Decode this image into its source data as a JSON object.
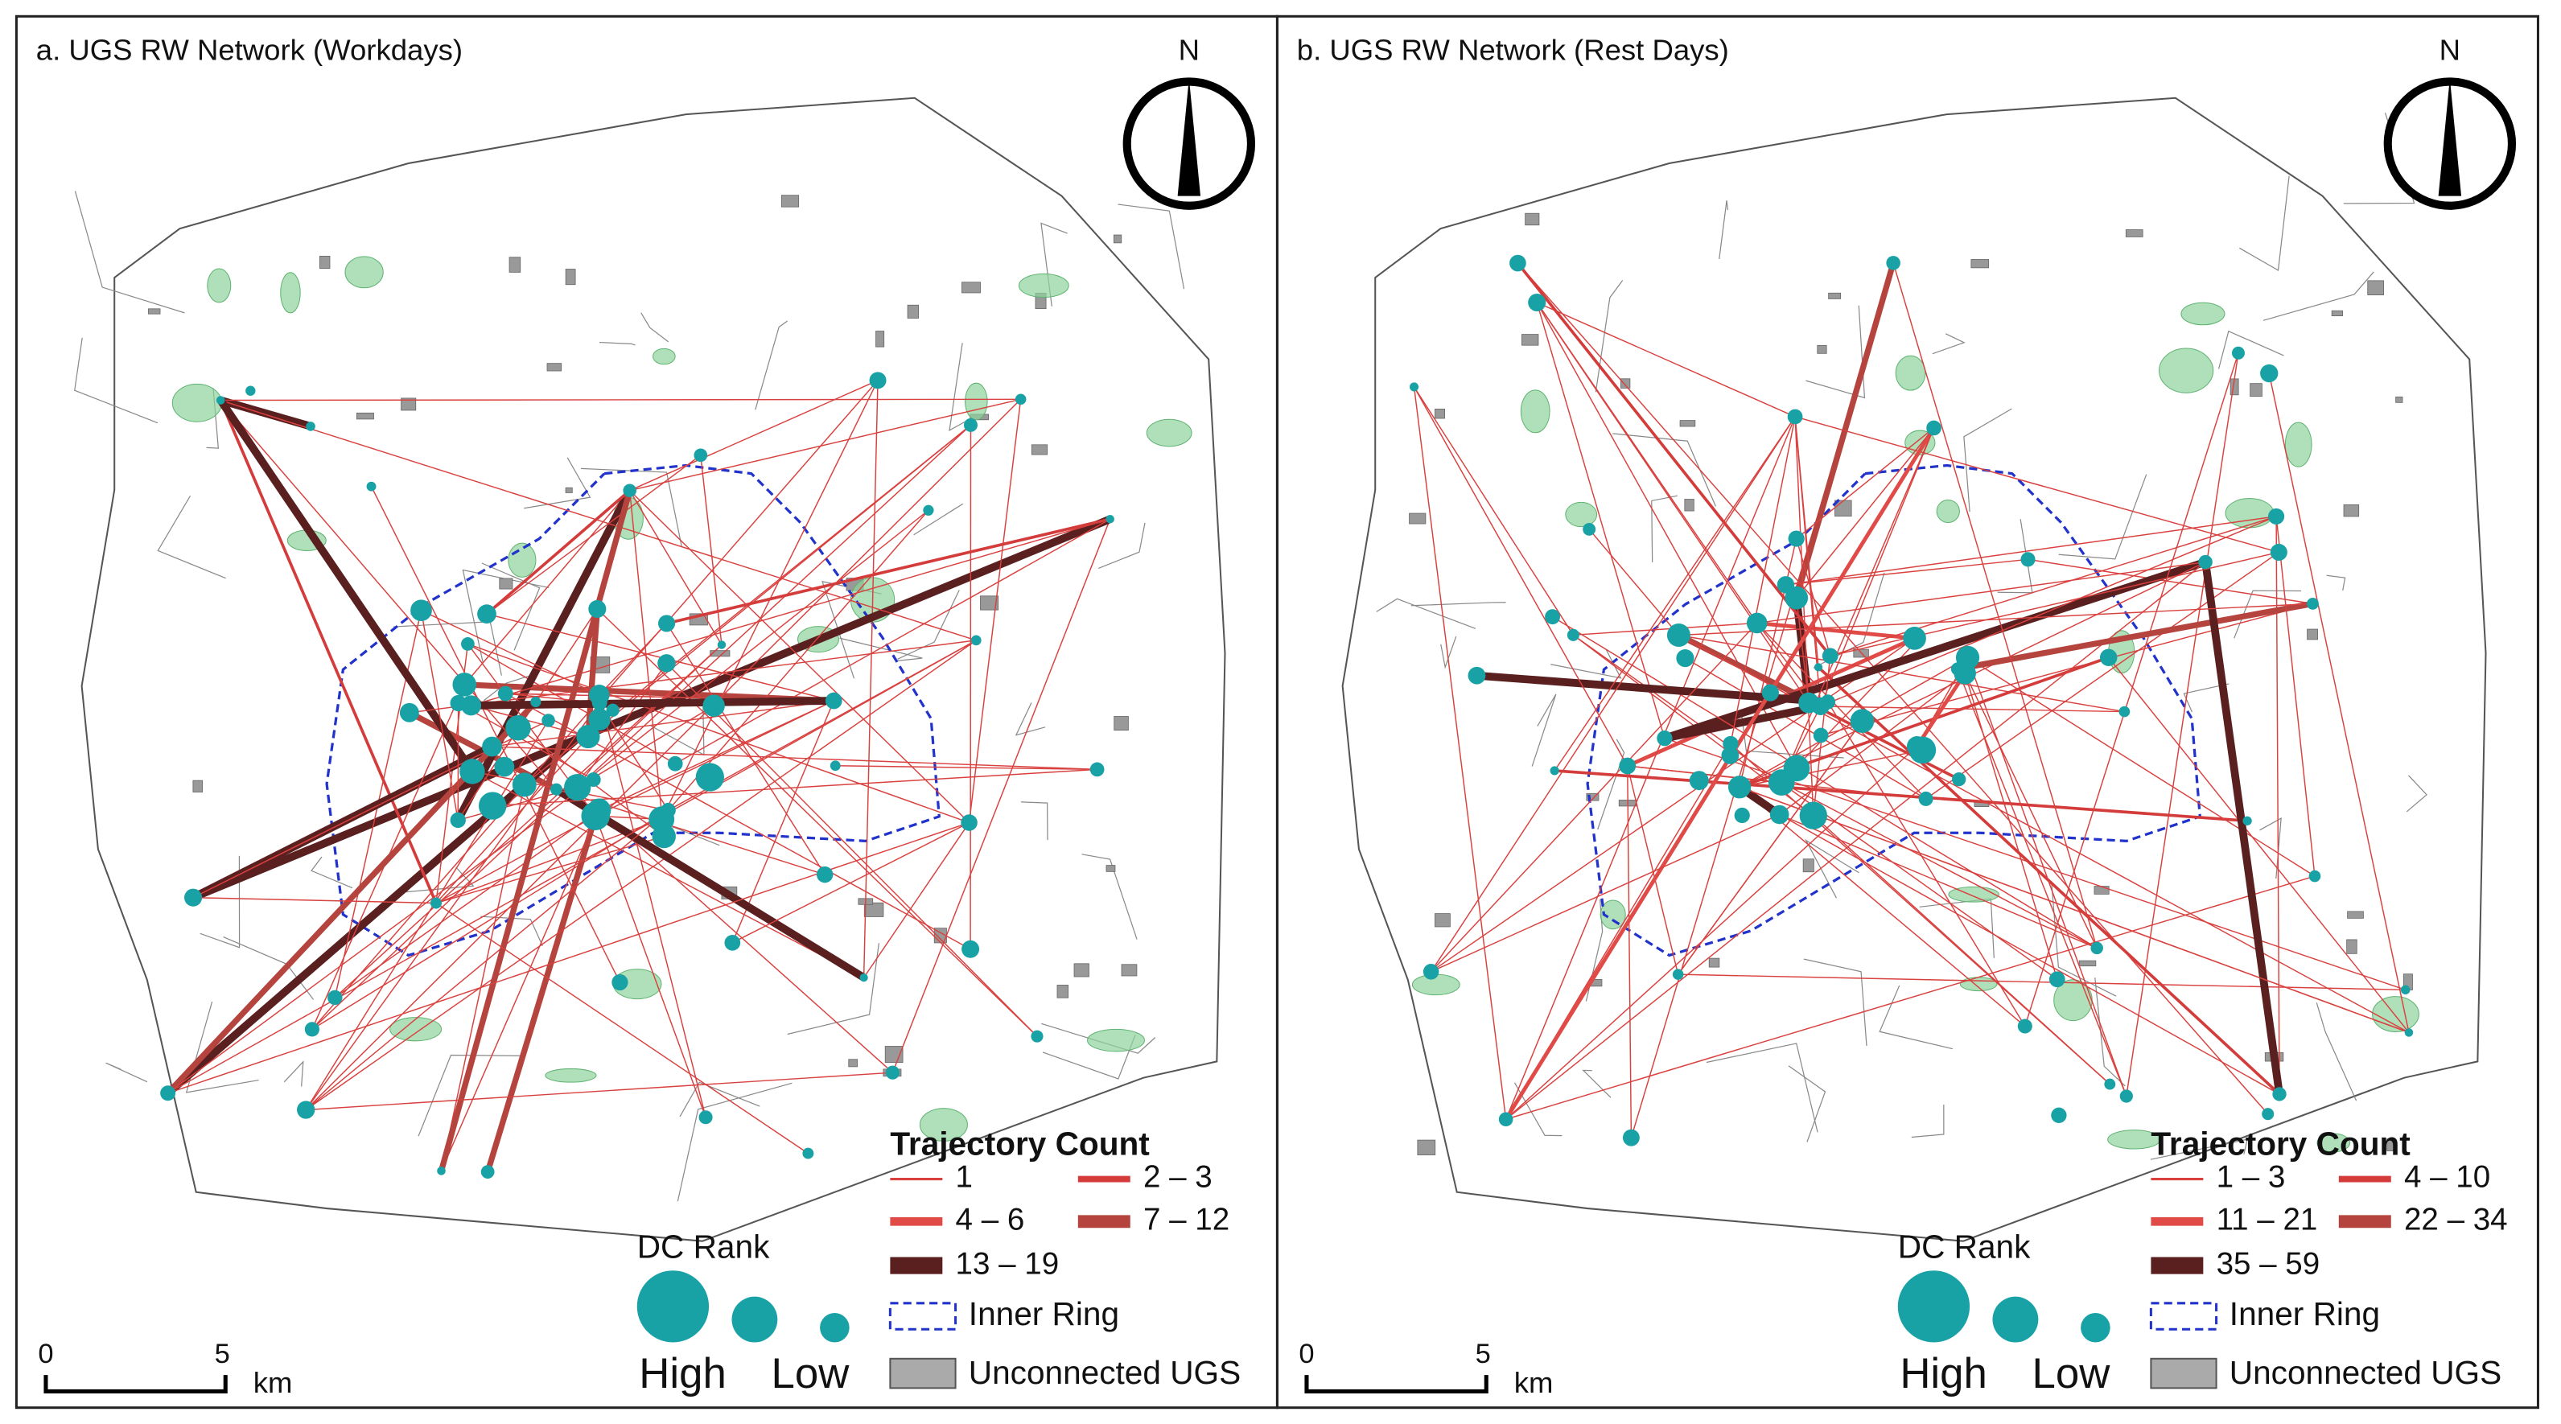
{
  "panels": [
    {
      "title": "a. UGS RW Network (Workdays)",
      "north": "N",
      "legend": {
        "title": "Trajectory Count",
        "classes": [
          "1",
          "2 – 3",
          "4 – 6",
          "7 – 12",
          "13 – 19"
        ],
        "dc_rank": "DC Rank",
        "high": "High",
        "low": "Low",
        "inner_ring": "Inner Ring",
        "unconnected": "Unconnected  UGS"
      },
      "scale": {
        "start": "0",
        "end": "5",
        "unit": "km"
      }
    },
    {
      "title": "b. UGS RW Network (Rest Days)",
      "north": "N",
      "legend": {
        "title": "Trajectory Count",
        "classes": [
          "1 – 3",
          "4 – 10",
          "11 – 21",
          "22 – 34",
          "35 – 59"
        ],
        "dc_rank": "DC Rank",
        "high": "High",
        "low": "Low",
        "inner_ring": "Inner Ring",
        "unconnected": "Unconnected  UGS"
      },
      "scale": {
        "start": "0",
        "end": "5",
        "unit": "km"
      }
    }
  ]
}
